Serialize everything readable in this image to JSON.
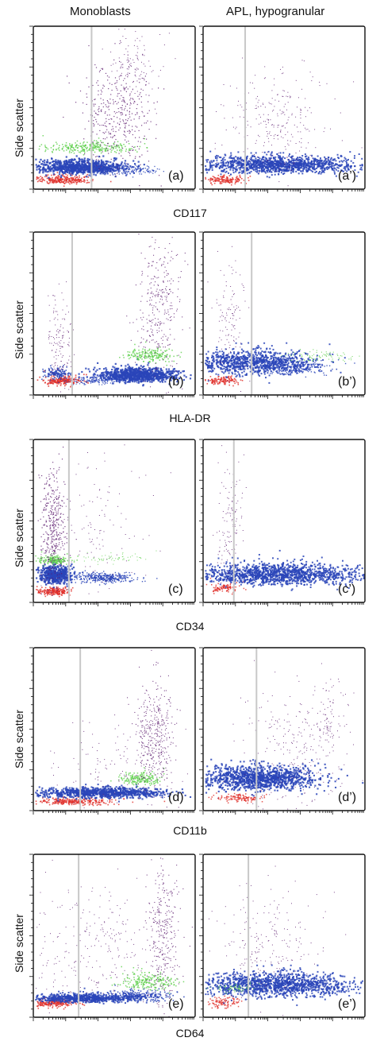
{
  "column_titles": [
    "Monoblasts",
    "APL, hypogranular"
  ],
  "y_axis_label": "Side scatter",
  "colors": {
    "red": "#e0302a",
    "blue": "#2a45b8",
    "green": "#5ccf4a",
    "purple": "#5b1a6e",
    "threshold": "#c8c8c8"
  },
  "chart_data": [
    {
      "type": "scatter",
      "marker": "CD117",
      "rows_label": "CD117",
      "panels": [
        {
          "label": "(a)",
          "threshold": 0.36
        },
        {
          "label": "(a’)",
          "threshold": 0.26
        }
      ]
    },
    {
      "type": "scatter",
      "marker": "HLA-DR",
      "rows_label": "HLA-DR",
      "panels": [
        {
          "label": "(b)",
          "threshold": 0.24
        },
        {
          "label": "(b’)",
          "threshold": 0.3
        }
      ]
    },
    {
      "type": "scatter",
      "marker": "CD34",
      "rows_label": "CD34",
      "panels": [
        {
          "label": "(c)",
          "threshold": 0.22
        },
        {
          "label": "(c’)",
          "threshold": 0.19
        }
      ]
    },
    {
      "type": "scatter",
      "marker": "CD11b",
      "rows_label": "CD11b",
      "panels": [
        {
          "label": "(d)",
          "threshold": 0.29
        },
        {
          "label": "(d’)",
          "threshold": 0.33
        }
      ]
    },
    {
      "type": "scatter",
      "marker": "CD64",
      "rows_label": "CD64",
      "panels": [
        {
          "label": "(e)",
          "threshold": 0.28
        },
        {
          "label": "(e’)",
          "threshold": 0.28
        }
      ]
    }
  ]
}
